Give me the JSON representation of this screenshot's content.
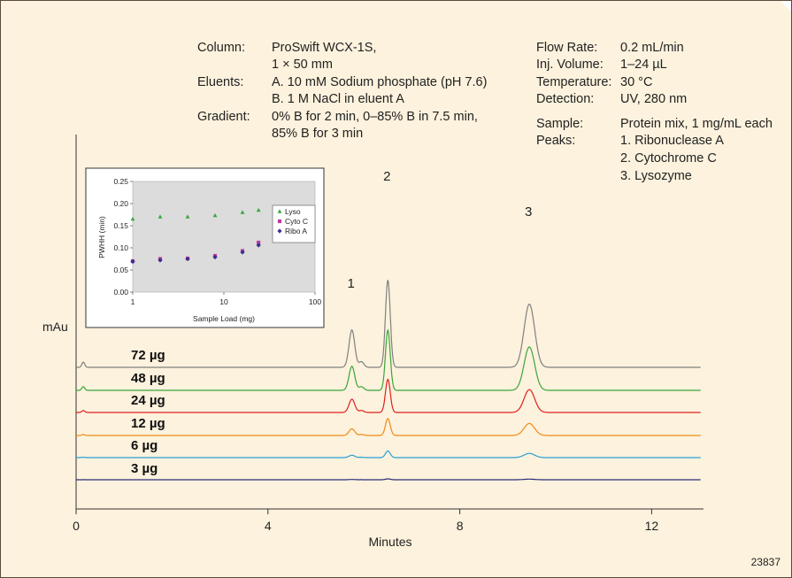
{
  "figure_id": "23837",
  "conditions_left": [
    {
      "label": "Column:",
      "lines": [
        "ProSwift WCX-1S,",
        "1 × 50 mm"
      ]
    },
    {
      "label": "Eluents:",
      "lines": [
        "A. 10 mM Sodium phosphate (pH 7.6)",
        "B. 1 M NaCl in eluent A"
      ]
    },
    {
      "label": "Gradient:",
      "lines": [
        "0% B for 2 min, 0–85% B in 7.5 min,",
        "85% B for 3 min"
      ]
    }
  ],
  "conditions_right": [
    {
      "label": "Flow Rate:",
      "value": "0.2 mL/min"
    },
    {
      "label": "Inj. Volume:",
      "value": "1–24 µL"
    },
    {
      "label": "Temperature:",
      "value": "30 °C"
    },
    {
      "label": "Detection:",
      "value": "UV, 280 nm"
    }
  ],
  "sample": {
    "label": "Sample:",
    "value": "Protein mix, 1 mg/mL each"
  },
  "peaks": {
    "label": "Peaks:",
    "items": [
      "1. Ribonuclease A",
      "2. Cytochrome C",
      "3. Lysozyme"
    ]
  },
  "chart_data": [
    {
      "type": "line",
      "xlabel": "Minutes",
      "ylabel": "mAu",
      "xlim": [
        0,
        13
      ],
      "xticks": [
        "0",
        "4",
        "8",
        "12"
      ],
      "xtick_values": [
        0,
        4,
        8,
        12
      ],
      "peak_labels": [
        {
          "label": "1",
          "time": 5.75
        },
        {
          "label": "2",
          "time": 6.5
        },
        {
          "label": "3",
          "time": 9.45
        }
      ],
      "series": [
        {
          "name": "72 µg",
          "color": "#808080",
          "peak_heights": [
            0.62,
            1.45,
            1.05
          ]
        },
        {
          "name": "48 µg",
          "color": "#3aa63a",
          "peak_heights": [
            0.4,
            1.0,
            0.72
          ]
        },
        {
          "name": "24 µg",
          "color": "#e01f1f",
          "peak_heights": [
            0.22,
            0.55,
            0.38
          ]
        },
        {
          "name": "12 µg",
          "color": "#f08a16",
          "peak_heights": [
            0.11,
            0.28,
            0.2
          ]
        },
        {
          "name": "6 µg",
          "color": "#2a9fd6",
          "peak_heights": [
            0.04,
            0.11,
            0.07
          ]
        },
        {
          "name": "3 µg",
          "color": "#2b2e7a",
          "peak_heights": [
            0.005,
            0.015,
            0.01
          ]
        }
      ]
    },
    {
      "type": "scatter",
      "xlabel": "Sample Load (mg)",
      "ylabel": "PWHH (min)",
      "xscale": "log",
      "xlim": [
        1,
        100
      ],
      "ylim": [
        0,
        0.25
      ],
      "xticks": [
        "1",
        "10",
        "100"
      ],
      "yticks": [
        "0.00",
        "0.05",
        "0.10",
        "0.15",
        "0.20",
        "0.25"
      ],
      "legend_position": "right",
      "series": [
        {
          "name": "Lyso",
          "color": "#3aa63a",
          "marker": "triangle",
          "x": [
            1,
            2,
            4,
            8,
            16,
            24
          ],
          "y": [
            0.165,
            0.17,
            0.17,
            0.173,
            0.18,
            0.185
          ]
        },
        {
          "name": "Cyto C",
          "color": "#c03aa0",
          "marker": "square",
          "x": [
            1,
            2,
            4,
            8,
            16,
            24
          ],
          "y": [
            0.07,
            0.075,
            0.076,
            0.082,
            0.093,
            0.112
          ]
        },
        {
          "name": "Ribo A",
          "color": "#3a2f8c",
          "marker": "diamond",
          "x": [
            1,
            2,
            4,
            8,
            16,
            24
          ],
          "y": [
            0.069,
            0.072,
            0.075,
            0.079,
            0.09,
            0.106
          ]
        }
      ]
    }
  ]
}
